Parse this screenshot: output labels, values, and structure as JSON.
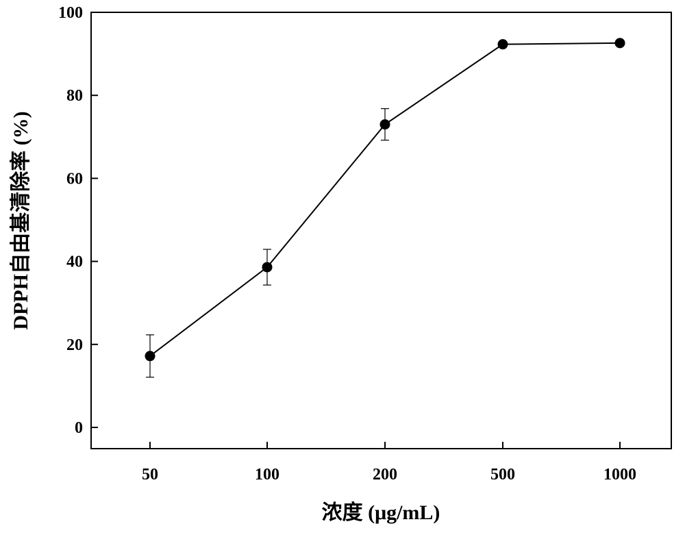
{
  "chart_data": {
    "type": "line",
    "title": "",
    "xlabel": "浓度 (μg/mL)",
    "ylabel": "DPPH自由基清除率 (%)",
    "categories": [
      "50",
      "100",
      "200",
      "500",
      "1000"
    ],
    "x_scale": "categorical",
    "ylim": [
      0,
      100
    ],
    "yticks": [
      0,
      20,
      40,
      60,
      80,
      100
    ],
    "grid": false,
    "legend": "none",
    "series": [
      {
        "values": [
          17.2,
          38.6,
          73.0,
          92.3,
          92.6
        ],
        "error": [
          5.1,
          4.3,
          3.8,
          0.4,
          0.4
        ],
        "color": "#000000",
        "marker": "filled-circle"
      }
    ]
  }
}
